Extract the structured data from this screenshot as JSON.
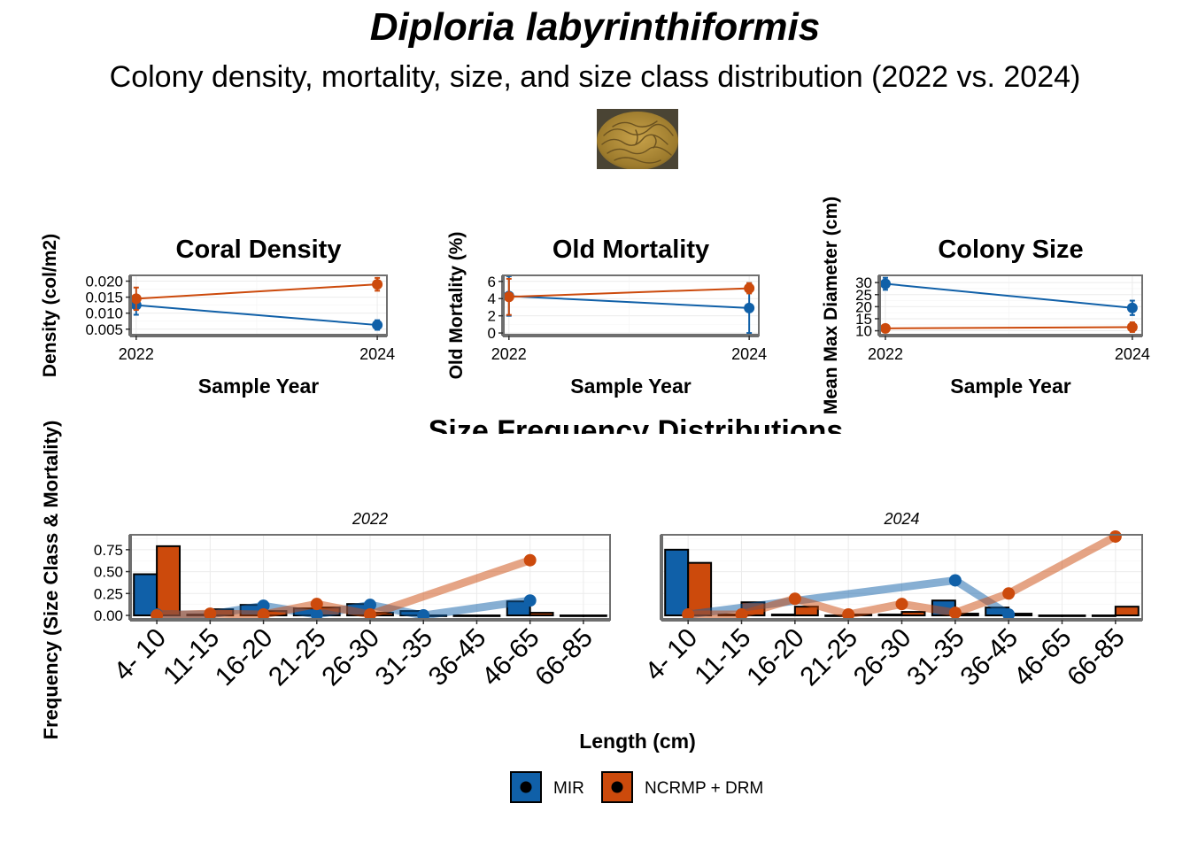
{
  "title": "Diploria labyrinthiformis",
  "subtitle": "Colony density, mortality, size, and size class distribution (2022 vs. 2024)",
  "photo_icon": "brain-coral-photo",
  "colors": {
    "MIR": "#1060a8",
    "NCRMP + DRM": "#cc4a0c",
    "panel_border": "#707070",
    "grid": "#ebebeb"
  },
  "legend": {
    "items": [
      "MIR",
      "NCRMP + DRM"
    ]
  },
  "chart_data": [
    {
      "type": "line",
      "title": "Coral Density",
      "xlabel": "Sample Year",
      "ylabel": "Density (col/m2)",
      "x": [
        2022,
        2024
      ],
      "xlim": [
        2021.95,
        2024.08
      ],
      "ylim": [
        0.003,
        0.0218
      ],
      "yticks": [
        0.005,
        0.01,
        0.015,
        0.02
      ],
      "ytick_labels": [
        "0.005",
        "0.010",
        "0.015",
        "0.020"
      ],
      "series": [
        {
          "name": "MIR",
          "values": [
            0.0125,
            0.0063
          ],
          "err": [
            0.003,
            0.0015
          ]
        },
        {
          "name": "NCRMP + DRM",
          "values": [
            0.0145,
            0.019
          ],
          "err": [
            0.0035,
            0.002
          ]
        }
      ]
    },
    {
      "type": "line",
      "title": "Old Mortality",
      "xlabel": "Sample Year",
      "ylabel": "Old Mortality (%)",
      "x": [
        2022,
        2024
      ],
      "xlim": [
        2021.95,
        2024.08
      ],
      "ylim": [
        -0.3,
        6.7
      ],
      "yticks": [
        0,
        2,
        4,
        6
      ],
      "ytick_labels": [
        "0",
        "2",
        "4",
        "6"
      ],
      "series": [
        {
          "name": "MIR",
          "values": [
            4.3,
            2.9
          ],
          "err": [
            2.3,
            2.9
          ]
        },
        {
          "name": "NCRMP + DRM",
          "values": [
            4.2,
            5.2
          ],
          "err": [
            2.1,
            0.6
          ]
        }
      ]
    },
    {
      "type": "line",
      "title": "Colony Size",
      "xlabel": "Sample Year",
      "ylabel": "Mean Max Diameter (cm)",
      "x": [
        2022,
        2024
      ],
      "xlim": [
        2021.95,
        2024.08
      ],
      "ylim": [
        8,
        33
      ],
      "yticks": [
        10,
        15,
        20,
        25,
        30
      ],
      "ytick_labels": [
        "10",
        "15",
        "20",
        "25",
        "30"
      ],
      "series": [
        {
          "name": "MIR",
          "values": [
            29.5,
            19.5
          ],
          "err": [
            2.5,
            3
          ]
        },
        {
          "name": "NCRMP + DRM",
          "values": [
            11,
            11.5
          ],
          "err": [
            1,
            2
          ]
        }
      ]
    },
    {
      "type": "bar",
      "title": "Size Frequency Distributions",
      "panel": "2022",
      "xlabel": "Length (cm)",
      "ylabel": "Frequency (Size Class & Mortality)",
      "categories": [
        "4- 10",
        "11-15",
        "16-20",
        "21-25",
        "26-30",
        "31-35",
        "36-45",
        "46-65",
        "66-85"
      ],
      "ylim": [
        -0.05,
        0.92
      ],
      "yticks": [
        0,
        0.25,
        0.5,
        0.75
      ],
      "ytick_labels": [
        "0.00",
        "0.25",
        "0.50",
        "0.75"
      ],
      "series": [
        {
          "name": "MIR",
          "values": [
            0.47,
            0.01,
            0.12,
            0.08,
            0.13,
            0.05,
            0.0,
            0.16,
            0.0
          ],
          "mortality": [
            0.01,
            0.01,
            0.11,
            0.01,
            0.12,
            0.0,
            null,
            0.17,
            null
          ]
        },
        {
          "name": "NCRMP + DRM",
          "values": [
            0.79,
            0.07,
            0.05,
            0.09,
            0.03,
            0.0,
            0.0,
            0.03,
            0.0
          ],
          "mortality": [
            0.0,
            0.02,
            0.01,
            0.13,
            0.01,
            null,
            null,
            0.63,
            null
          ]
        }
      ]
    },
    {
      "type": "bar",
      "title": "Size Frequency Distributions",
      "panel": "2024",
      "xlabel": "Length (cm)",
      "ylabel": "Frequency (Size Class & Mortality)",
      "categories": [
        "4- 10",
        "11-15",
        "16-20",
        "21-25",
        "26-30",
        "31-35",
        "36-45",
        "46-65",
        "66-85"
      ],
      "ylim": [
        -0.05,
        0.92
      ],
      "yticks": [
        0,
        0.25,
        0.5,
        0.75
      ],
      "ytick_labels": [
        "0.00",
        "0.25",
        "0.50",
        "0.75"
      ],
      "series": [
        {
          "name": "MIR",
          "values": [
            0.75,
            0.01,
            0.01,
            0.0,
            0.01,
            0.17,
            0.09,
            0.0,
            0.0
          ],
          "mortality": [
            0.01,
            null,
            null,
            null,
            null,
            0.4,
            0.01,
            null,
            null
          ]
        },
        {
          "name": "NCRMP + DRM",
          "values": [
            0.6,
            0.15,
            0.1,
            0.01,
            0.04,
            0.02,
            0.02,
            0.0,
            0.1
          ],
          "mortality": [
            0.01,
            0.01,
            0.19,
            0.01,
            0.13,
            0.03,
            0.25,
            null,
            0.9
          ]
        }
      ]
    }
  ]
}
